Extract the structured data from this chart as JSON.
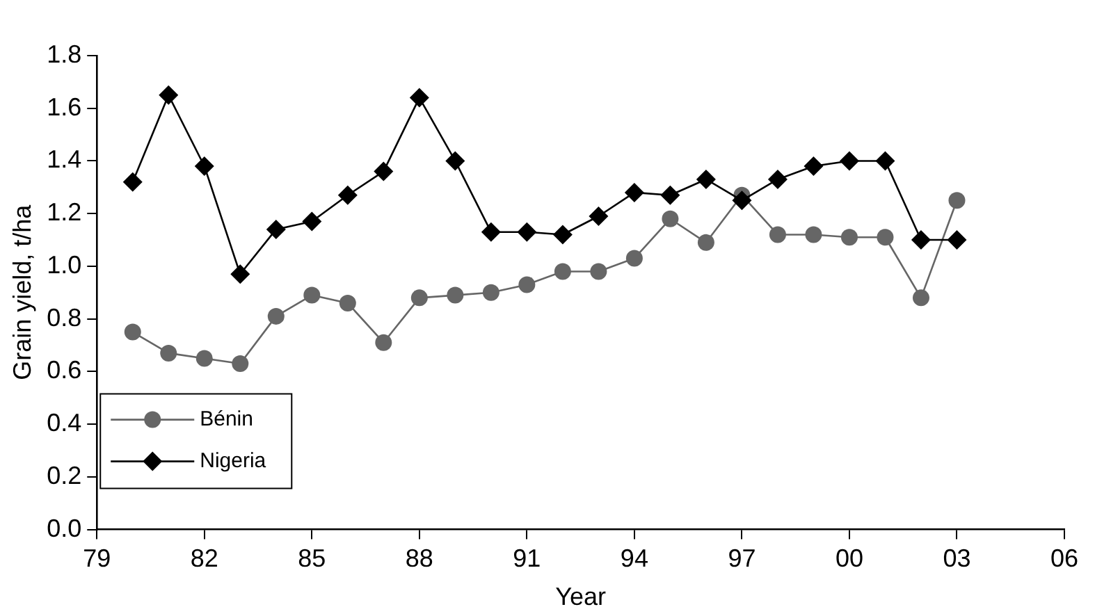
{
  "chart_data": {
    "type": "line",
    "xlabel": "Year",
    "ylabel": "Grain yield, t/ha",
    "x": [
      1980,
      1981,
      1982,
      1983,
      1984,
      1985,
      1986,
      1987,
      1988,
      1989,
      1990,
      1991,
      1992,
      1993,
      1994,
      1995,
      1996,
      1997,
      1998,
      1999,
      2000,
      2001,
      2002,
      2003
    ],
    "series": [
      {
        "name": "Bénin",
        "color": "#666666",
        "marker": "circle",
        "values": [
          0.75,
          0.67,
          0.65,
          0.63,
          0.81,
          0.89,
          0.86,
          0.71,
          0.88,
          0.89,
          0.9,
          0.93,
          0.98,
          0.98,
          1.03,
          1.18,
          1.09,
          1.27,
          1.12,
          1.12,
          1.11,
          1.11,
          0.88,
          1.25
        ]
      },
      {
        "name": "Nigeria",
        "color": "#000000",
        "marker": "diamond",
        "values": [
          1.32,
          1.65,
          1.38,
          0.97,
          1.14,
          1.17,
          1.27,
          1.36,
          1.64,
          1.4,
          1.13,
          1.13,
          1.12,
          1.19,
          1.28,
          1.27,
          1.33,
          1.25,
          1.33,
          1.38,
          1.4,
          1.4,
          1.1,
          1.1
        ]
      }
    ],
    "xlim": [
      1979,
      2006
    ],
    "xticks": [
      {
        "value": 1979,
        "label": "79"
      },
      {
        "value": 1982,
        "label": "82"
      },
      {
        "value": 1985,
        "label": "85"
      },
      {
        "value": 1988,
        "label": "88"
      },
      {
        "value": 1991,
        "label": "91"
      },
      {
        "value": 1994,
        "label": "94"
      },
      {
        "value": 1997,
        "label": "97"
      },
      {
        "value": 2000,
        "label": "00"
      },
      {
        "value": 2003,
        "label": "03"
      },
      {
        "value": 2006,
        "label": "06"
      }
    ],
    "ylim": [
      0,
      1.8
    ],
    "yticks": [
      {
        "value": 0,
        "label": "0.0"
      },
      {
        "value": 0.2,
        "label": "0.2"
      },
      {
        "value": 0.4,
        "label": "0.4"
      },
      {
        "value": 0.6,
        "label": "0.6"
      },
      {
        "value": 0.8,
        "label": "0.8"
      },
      {
        "value": 1,
        "label": "1.0"
      },
      {
        "value": 1.2,
        "label": "1.2"
      },
      {
        "value": 1.4,
        "label": "1.4"
      },
      {
        "value": 1.6,
        "label": "1.6"
      },
      {
        "value": 1.8,
        "label": "1.8"
      }
    ],
    "grid": false,
    "legend": "bottom left",
    "line_style": "solid"
  }
}
